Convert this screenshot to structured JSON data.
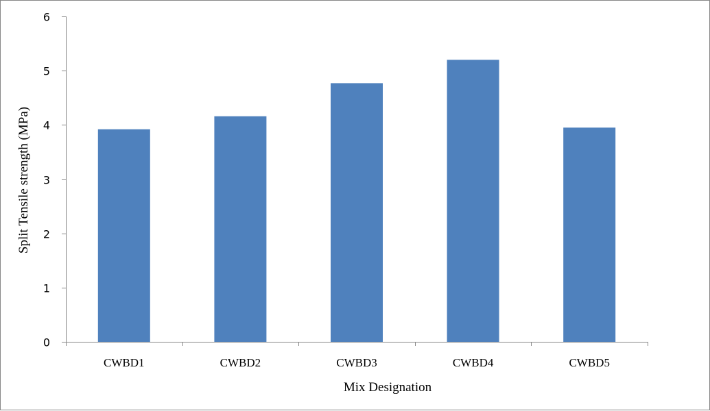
{
  "chart_data": {
    "type": "bar",
    "title": "",
    "xlabel": "Mix Designation",
    "ylabel": "Split Tensile strength (MPa)",
    "categories": [
      "CWBD1",
      "CWBD2",
      "CWBD3",
      "CWBD4",
      "CWBD5"
    ],
    "series": [
      {
        "values": [
          3.92,
          4.16,
          4.77,
          5.2,
          3.95
        ]
      }
    ],
    "ylim": [
      0,
      6
    ],
    "yticks": [
      "0",
      "1",
      "2",
      "3",
      "4",
      "5",
      "6"
    ],
    "grid": false,
    "legend": "none",
    "colors": {
      "bar": "#4f81bd",
      "axis": "#868686"
    }
  }
}
